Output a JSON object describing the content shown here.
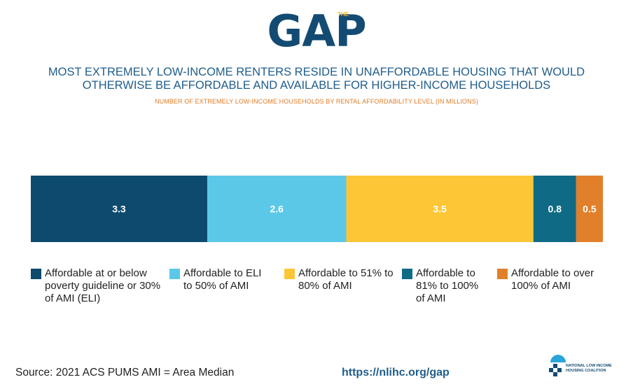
{
  "header": {
    "logo_small": "THE",
    "logo_main": "GAP",
    "title": "MOST EXTREMELY LOW-INCOME RENTERS RESIDE IN UNAFFORDABLE HOUSING THAT WOULD OTHERWISE BE AFFORDABLE AND AVAILABLE FOR HIGHER-INCOME HOUSEHOLDS",
    "subtitle": "NUMBER OF EXTREMELY LOW-INCOME HOUSEHOLDS BY RENTAL AFFORDABILITY LEVEL (IN MILLIONS)"
  },
  "chart_data": {
    "type": "bar",
    "orientation": "horizontal-stacked",
    "title": "NUMBER OF EXTREMELY LOW-INCOME HOUSEHOLDS BY RENTAL AFFORDABILITY LEVEL (IN MILLIONS)",
    "categories": [
      ""
    ],
    "series": [
      {
        "name": "Affordable at or below poverty guideline or 30% of AMI (ELI)",
        "values": [
          3.3
        ],
        "color": "#0d4a6e",
        "label": "3.3"
      },
      {
        "name": "Affordable to ELI to 50% of AMI",
        "values": [
          2.6
        ],
        "color": "#5bc8e8",
        "label": "2.6"
      },
      {
        "name": "Affordable to 51% to 80% of AMI",
        "values": [
          3.5
        ],
        "color": "#fdc637",
        "label": "3.5"
      },
      {
        "name": "Affordable to 81% to 100% of AMI",
        "values": [
          0.8
        ],
        "color": "#0f6a85",
        "label": "0.8"
      },
      {
        "name": "Affordable to over 100% of AMI",
        "values": [
          0.5
        ],
        "color": "#e17f2a",
        "label": "0.5"
      }
    ],
    "legend_position": "bottom",
    "grid": false
  },
  "footer": {
    "source": "Source: 2021 ACS PUMS AMI = Area Median",
    "url": "https://nlihc.org/gap",
    "org_line1": "NATIONAL LOW INCOME",
    "org_line2": "HOUSING COALITION"
  },
  "colors": {
    "title": "#1f5d8c",
    "subtitle": "#e07b26",
    "logo": "#134b73"
  }
}
